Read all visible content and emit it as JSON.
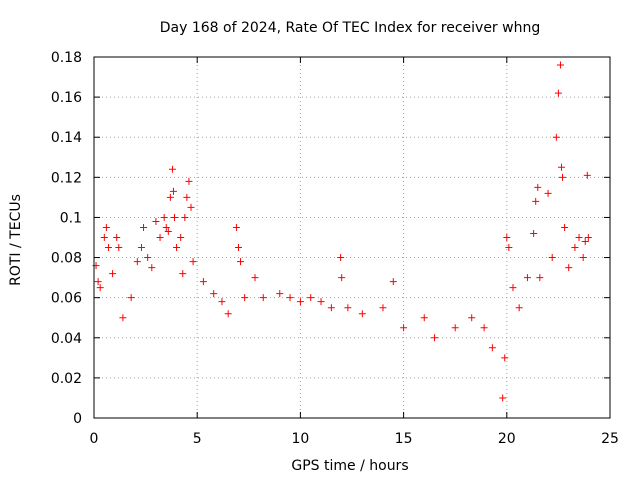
{
  "chart_data": {
    "type": "scatter",
    "title": "Day 168 of 2024, Rate Of TEC Index for receiver whng",
    "xlabel": "GPS time / hours",
    "ylabel": "ROTI / TECUs",
    "xlim": [
      0,
      25
    ],
    "ylim": [
      0,
      0.18
    ],
    "x_ticks": [
      0,
      5,
      10,
      15,
      20,
      25
    ],
    "x_tick_labels": [
      "0",
      "5",
      "10",
      "15",
      "20",
      "25"
    ],
    "y_ticks": [
      0,
      0.02,
      0.04,
      0.06,
      0.08,
      0.1,
      0.12,
      0.14,
      0.16,
      0.18
    ],
    "y_tick_labels": [
      "0",
      "0.02",
      "0.04",
      "0.06",
      "0.08",
      "0.1",
      "0.12",
      "0.14",
      "0.16",
      "0.18"
    ],
    "grid": true,
    "legend": "none",
    "marker": "plus",
    "color": "#ff0000",
    "series": [
      {
        "points": [
          [
            0.1,
            0.076
          ],
          [
            0.2,
            0.068
          ],
          [
            0.3,
            0.065
          ],
          [
            0.5,
            0.09
          ],
          [
            0.6,
            0.095
          ],
          [
            0.7,
            0.085
          ],
          [
            0.9,
            0.072
          ],
          [
            1.1,
            0.09
          ],
          [
            1.2,
            0.085
          ],
          [
            1.4,
            0.05
          ],
          [
            1.8,
            0.06
          ],
          [
            2.1,
            0.078
          ],
          [
            2.3,
            0.085
          ],
          [
            2.4,
            0.095
          ],
          [
            2.6,
            0.08
          ],
          [
            2.8,
            0.075
          ],
          [
            3.0,
            0.098
          ],
          [
            3.2,
            0.09
          ],
          [
            3.4,
            0.1
          ],
          [
            3.5,
            0.095
          ],
          [
            3.6,
            0.093
          ],
          [
            3.7,
            0.11
          ],
          [
            3.8,
            0.124
          ],
          [
            3.85,
            0.113
          ],
          [
            3.9,
            0.1
          ],
          [
            4.0,
            0.085
          ],
          [
            4.2,
            0.09
          ],
          [
            4.3,
            0.072
          ],
          [
            4.4,
            0.1
          ],
          [
            4.5,
            0.11
          ],
          [
            4.6,
            0.118
          ],
          [
            4.7,
            0.105
          ],
          [
            4.8,
            0.078
          ],
          [
            5.3,
            0.068
          ],
          [
            5.8,
            0.062
          ],
          [
            6.2,
            0.058
          ],
          [
            6.5,
            0.052
          ],
          [
            6.9,
            0.095
          ],
          [
            7.0,
            0.085
          ],
          [
            7.1,
            0.078
          ],
          [
            7.3,
            0.06
          ],
          [
            7.8,
            0.07
          ],
          [
            8.2,
            0.06
          ],
          [
            9.0,
            0.062
          ],
          [
            9.5,
            0.06
          ],
          [
            10.0,
            0.058
          ],
          [
            10.5,
            0.06
          ],
          [
            11.0,
            0.058
          ],
          [
            11.5,
            0.055
          ],
          [
            11.95,
            0.08
          ],
          [
            12.0,
            0.07
          ],
          [
            12.3,
            0.055
          ],
          [
            13.0,
            0.052
          ],
          [
            14.0,
            0.055
          ],
          [
            14.5,
            0.068
          ],
          [
            15.0,
            0.045
          ],
          [
            16.0,
            0.05
          ],
          [
            16.5,
            0.04
          ],
          [
            17.5,
            0.045
          ],
          [
            18.3,
            0.05
          ],
          [
            18.9,
            0.045
          ],
          [
            19.3,
            0.035
          ],
          [
            19.8,
            0.01
          ],
          [
            19.9,
            0.03
          ],
          [
            20.0,
            0.09
          ],
          [
            20.1,
            0.085
          ],
          [
            20.3,
            0.065
          ],
          [
            20.6,
            0.055
          ],
          [
            21.0,
            0.07
          ],
          [
            21.3,
            0.092
          ],
          [
            21.4,
            0.108
          ],
          [
            21.5,
            0.115
          ],
          [
            21.6,
            0.07
          ],
          [
            22.0,
            0.112
          ],
          [
            22.2,
            0.08
          ],
          [
            22.4,
            0.14
          ],
          [
            22.5,
            0.162
          ],
          [
            22.6,
            0.176
          ],
          [
            22.65,
            0.125
          ],
          [
            22.7,
            0.12
          ],
          [
            22.8,
            0.095
          ],
          [
            23.0,
            0.075
          ],
          [
            23.3,
            0.085
          ],
          [
            23.5,
            0.09
          ],
          [
            23.7,
            0.08
          ],
          [
            23.8,
            0.088
          ],
          [
            23.9,
            0.121
          ],
          [
            23.95,
            0.09
          ]
        ]
      }
    ]
  }
}
